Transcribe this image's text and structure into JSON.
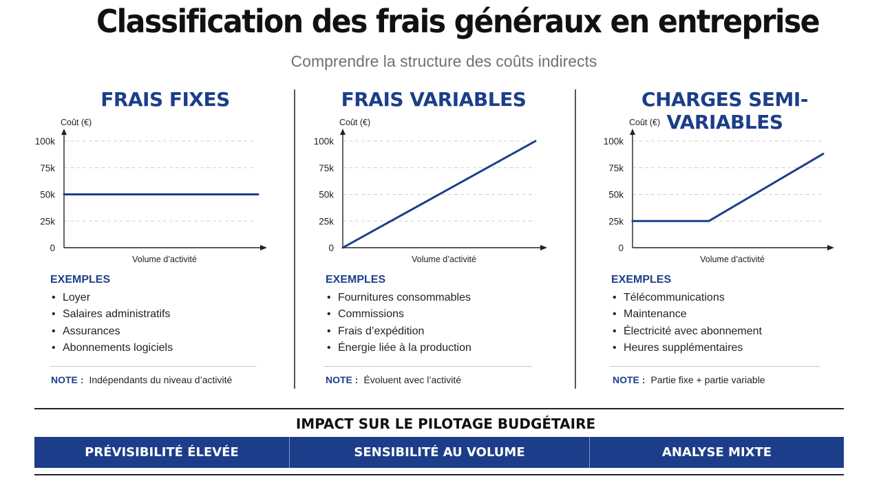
{
  "title": "Classification des frais généraux en entreprise",
  "subtitle": "Comprendre la structure des coûts indirects",
  "y_tick_labels": [
    "0",
    "25k",
    "50k",
    "75k",
    "100k"
  ],
  "colors": {
    "accent": "#1c3e8a",
    "grid": "#cfcfcf",
    "text": "#1b1b1b"
  },
  "columns": [
    {
      "heading": "FRAIS FIXES",
      "examples_title": "EXEMPLES",
      "examples": [
        "Loyer",
        "Salaires administratifs",
        "Assurances",
        "Abonnements logiciels"
      ],
      "note_label": "NOTE :",
      "note_text": "Indépendants du niveau d’activité"
    },
    {
      "heading": "FRAIS VARIABLES",
      "examples_title": "EXEMPLES",
      "examples": [
        "Fournitures consommables",
        "Commissions",
        "Frais d’expédition",
        "Énergie liée à la production"
      ],
      "note_label": "NOTE :",
      "note_text": "Évoluent avec l’activité"
    },
    {
      "heading": "CHARGES SEMI-VARIABLES",
      "examples_title": "EXEMPLES",
      "examples": [
        "Télécommunications",
        "Maintenance",
        "Électricité avec abonnement",
        "Heures supplémentaires"
      ],
      "note_label": "NOTE :",
      "note_text": "Partie fixe + partie variable"
    }
  ],
  "impact": {
    "title": "IMPACT SUR LE PILOTAGE BUDGÉTAIRE",
    "items": [
      "PRÉVISIBILITÉ ÉLEVÉE",
      "SENSIBILITÉ AU VOLUME",
      "ANALYSE MIXTE"
    ]
  },
  "chart_data": [
    {
      "type": "line",
      "title": "FRAIS FIXES",
      "xlabel": "Volume d’activité",
      "ylabel": "Coût (€)",
      "ylim": [
        0,
        100000
      ],
      "yticks": [
        0,
        25000,
        50000,
        75000,
        100000
      ],
      "xlim": [
        0,
        1
      ],
      "grid": true,
      "series": [
        {
          "x": [
            0,
            1
          ],
          "y": [
            50000,
            50000
          ]
        }
      ]
    },
    {
      "type": "line",
      "title": "FRAIS VARIABLES",
      "xlabel": "Volume d’activité",
      "ylabel": "Coût (€)",
      "ylim": [
        0,
        100000
      ],
      "yticks": [
        0,
        25000,
        50000,
        75000,
        100000
      ],
      "xlim": [
        0,
        1
      ],
      "grid": true,
      "series": [
        {
          "x": [
            0,
            1
          ],
          "y": [
            0,
            100000
          ]
        }
      ]
    },
    {
      "type": "line",
      "title": "CHARGES SEMI-VARIABLES",
      "xlabel": "Volume d’activité",
      "ylabel": "Coût (€)",
      "ylim": [
        0,
        100000
      ],
      "yticks": [
        0,
        25000,
        50000,
        75000,
        100000
      ],
      "xlim": [
        0,
        1
      ],
      "grid": true,
      "series": [
        {
          "x": [
            0,
            0.4,
            1
          ],
          "y": [
            25000,
            25000,
            88000
          ]
        }
      ]
    }
  ]
}
